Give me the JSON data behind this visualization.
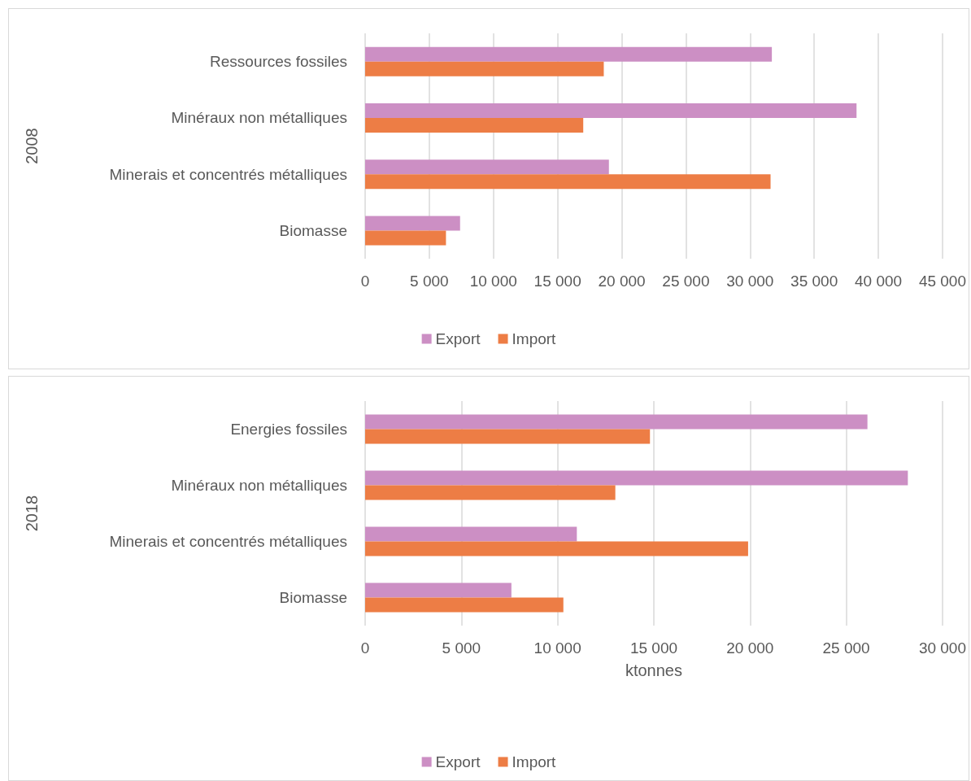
{
  "chart_data": [
    {
      "type": "bar",
      "orientation": "horizontal",
      "ylabel": "2008",
      "categories": [
        "Ressources fossiles",
        "Minéraux non métalliques",
        "Minerais et concentrés métalliques",
        "Biomasse"
      ],
      "series": [
        {
          "name": "Export",
          "color": "#cc8fc4",
          "values": [
            31700,
            38300,
            19000,
            7400
          ]
        },
        {
          "name": "Import",
          "color": "#ed7d45",
          "values": [
            18600,
            17000,
            31600,
            6300
          ]
        }
      ],
      "xlim": [
        0,
        45000
      ],
      "xticks": [
        0,
        {
          "value": 5000,
          "label": "5 000"
        },
        {
          "value": 10000,
          "label": "10 000"
        },
        {
          "value": 15000,
          "label": "15 000"
        },
        {
          "value": 20000,
          "label": "20 000"
        },
        {
          "value": 25000,
          "label": "25 000"
        },
        {
          "value": 30000,
          "label": "30 000"
        },
        {
          "value": 35000,
          "label": "35 000"
        },
        {
          "value": 40000,
          "label": "40 000"
        },
        {
          "value": 45000,
          "label": "45 000"
        }
      ],
      "grid": "x",
      "legend": "bottom"
    },
    {
      "type": "bar",
      "orientation": "horizontal",
      "ylabel": "2018",
      "xlabel": "ktonnes",
      "categories": [
        "Energies fossiles",
        "Minéraux non métalliques",
        "Minerais et concentrés métalliques",
        "Biomasse"
      ],
      "series": [
        {
          "name": "Export",
          "color": "#cc8fc4",
          "values": [
            26100,
            28200,
            11000,
            7600
          ]
        },
        {
          "name": "Import",
          "color": "#ed7d45",
          "values": [
            14800,
            13000,
            19900,
            10300
          ]
        }
      ],
      "xlim": [
        0,
        30000
      ],
      "xticks": [
        0,
        {
          "value": 5000,
          "label": "5 000"
        },
        {
          "value": 10000,
          "label": "10 000"
        },
        {
          "value": 15000,
          "label": "15 000"
        },
        {
          "value": 20000,
          "label": "20 000"
        },
        {
          "value": 25000,
          "label": "25 000"
        },
        {
          "value": 30000,
          "label": "30 000"
        }
      ],
      "grid": "x",
      "legend": "bottom"
    }
  ]
}
